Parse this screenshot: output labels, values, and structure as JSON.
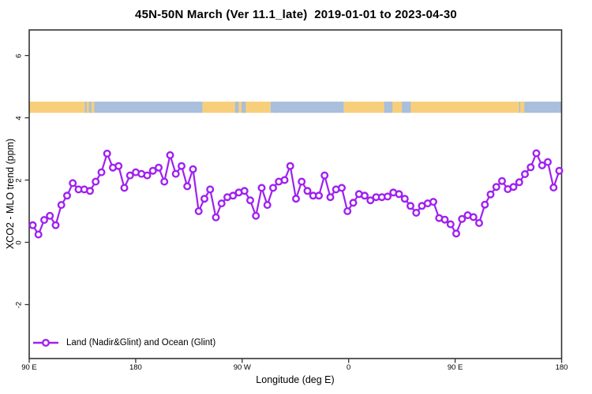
{
  "chart_data": {
    "type": "line",
    "title": "45N-50N March (Ver 11.1_late)  2019-01-01 to 2023-04-30",
    "xlabel": "Longitude (deg E)",
    "ylabel": "XCO2 - MLO trend (ppm)",
    "grid": false,
    "colors": {
      "series": "#A020F0",
      "land": "#F7CF7B",
      "ocean": "#A9BFDB",
      "axis": "#333333"
    },
    "x_axis": {
      "description": "longitude wrapping eastward from 90E through 180, 90W, 0, 90E to 180; 450 deg total span",
      "tick_offsets_deg": [
        0,
        90,
        180,
        270,
        360,
        450
      ],
      "tick_labels": [
        "90 E",
        "180",
        "90 W",
        "0",
        "90 E",
        "180"
      ]
    },
    "y_axis": {
      "ticks": [
        -2,
        0,
        2,
        4,
        6
      ],
      "range_ppm": [
        -3.75,
        6.82
      ]
    },
    "series": [
      {
        "name": "Land (Nadir&Glint) and Ocean (Glint)",
        "marker": "open-circle",
        "x_first_offset_deg": 3,
        "x_last_offset_deg": 448,
        "values_ppm": [
          0.55,
          0.25,
          0.72,
          0.85,
          0.55,
          1.2,
          1.5,
          1.9,
          1.7,
          1.7,
          1.65,
          1.95,
          2.25,
          2.85,
          2.4,
          2.45,
          1.75,
          2.15,
          2.25,
          2.2,
          2.15,
          2.3,
          2.4,
          1.95,
          2.8,
          2.2,
          2.45,
          1.8,
          2.35,
          1.0,
          1.4,
          1.7,
          0.8,
          1.25,
          1.45,
          1.5,
          1.6,
          1.65,
          1.35,
          0.85,
          1.75,
          1.2,
          1.75,
          1.95,
          2.0,
          2.45,
          1.4,
          1.95,
          1.65,
          1.5,
          1.5,
          2.15,
          1.45,
          1.7,
          1.75,
          1.0,
          1.27,
          1.55,
          1.5,
          1.35,
          1.45,
          1.45,
          1.47,
          1.6,
          1.55,
          1.4,
          1.17,
          0.95,
          1.17,
          1.25,
          1.3,
          0.78,
          0.73,
          0.58,
          0.28,
          0.75,
          0.87,
          0.81,
          0.62,
          1.21,
          1.54,
          1.78,
          1.97,
          1.71,
          1.78,
          1.93,
          2.19,
          2.41,
          2.86,
          2.47,
          2.58,
          1.76,
          2.3
        ]
      }
    ],
    "map_strip": {
      "description": "land/ocean mask band across the 45N-50N zone",
      "ppm_top": 4.52,
      "ppm_bottom": 4.16,
      "base_segments": [
        {
          "type": "land",
          "from_deg": 0,
          "to_deg": 47
        },
        {
          "type": "ocean",
          "from_deg": 47,
          "to_deg": 146.5
        },
        {
          "type": "land",
          "from_deg": 146.5,
          "to_deg": 204
        },
        {
          "type": "ocean",
          "from_deg": 204,
          "to_deg": 266
        },
        {
          "type": "land",
          "from_deg": 266,
          "to_deg": 414
        },
        {
          "type": "ocean",
          "from_deg": 414,
          "to_deg": 450
        }
      ],
      "overlay_patches": [
        {
          "type": "land",
          "from_deg": 48.5,
          "to_deg": 50.5
        },
        {
          "type": "land",
          "from_deg": 52.5,
          "to_deg": 55
        },
        {
          "type": "ocean",
          "from_deg": 174,
          "to_deg": 177
        },
        {
          "type": "ocean",
          "from_deg": 179.5,
          "to_deg": 183
        },
        {
          "type": "ocean",
          "from_deg": 207,
          "to_deg": 209
        },
        {
          "type": "ocean",
          "from_deg": 300,
          "to_deg": 307
        },
        {
          "type": "ocean",
          "from_deg": 315,
          "to_deg": 322.5
        },
        {
          "type": "land",
          "from_deg": 415,
          "to_deg": 418.5
        }
      ]
    },
    "legend": {
      "label": "Land (Nadir&Glint) and Ocean (Glint)",
      "position": "bottom-left"
    }
  }
}
